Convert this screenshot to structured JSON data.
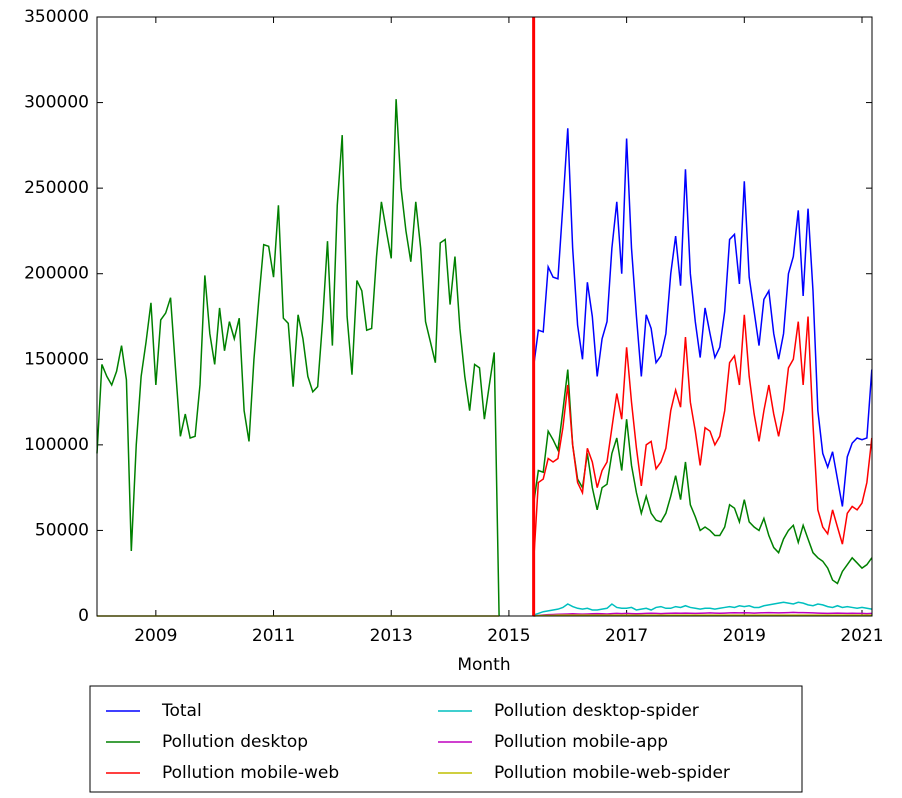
{
  "chart_data": {
    "type": "line",
    "xlabel": "Month",
    "xlim": [
      2008.0,
      2021.17
    ],
    "ylim": [
      0,
      350000
    ],
    "xticks": [
      2009,
      2011,
      2013,
      2015,
      2017,
      2019,
      2021
    ],
    "yticks": [
      0,
      50000,
      100000,
      150000,
      200000,
      250000,
      300000,
      350000
    ],
    "legend": "below",
    "vlines": [
      {
        "x": 2015.42,
        "color": "#ff0000"
      }
    ],
    "x": [
      2008.0,
      2008.083,
      2008.167,
      2008.25,
      2008.333,
      2008.417,
      2008.5,
      2008.583,
      2008.667,
      2008.75,
      2008.833,
      2008.917,
      2009.0,
      2009.083,
      2009.167,
      2009.25,
      2009.333,
      2009.417,
      2009.5,
      2009.583,
      2009.667,
      2009.75,
      2009.833,
      2009.917,
      2010.0,
      2010.083,
      2010.167,
      2010.25,
      2010.333,
      2010.417,
      2010.5,
      2010.583,
      2010.667,
      2010.75,
      2010.833,
      2010.917,
      2011.0,
      2011.083,
      2011.167,
      2011.25,
      2011.333,
      2011.417,
      2011.5,
      2011.583,
      2011.667,
      2011.75,
      2011.833,
      2011.917,
      2012.0,
      2012.083,
      2012.167,
      2012.25,
      2012.333,
      2012.417,
      2012.5,
      2012.583,
      2012.667,
      2012.75,
      2012.833,
      2012.917,
      2013.0,
      2013.083,
      2013.167,
      2013.25,
      2013.333,
      2013.417,
      2013.5,
      2013.583,
      2013.667,
      2013.75,
      2013.833,
      2013.917,
      2014.0,
      2014.083,
      2014.167,
      2014.25,
      2014.333,
      2014.417,
      2014.5,
      2014.583,
      2014.667,
      2014.75,
      2014.833,
      2014.917,
      2015.0,
      2015.083,
      2015.167,
      2015.25,
      2015.333,
      2015.417,
      2015.5,
      2015.583,
      2015.667,
      2015.75,
      2015.833,
      2015.917,
      2016.0,
      2016.083,
      2016.167,
      2016.25,
      2016.333,
      2016.417,
      2016.5,
      2016.583,
      2016.667,
      2016.75,
      2016.833,
      2016.917,
      2017.0,
      2017.083,
      2017.167,
      2017.25,
      2017.333,
      2017.417,
      2017.5,
      2017.583,
      2017.667,
      2017.75,
      2017.833,
      2017.917,
      2018.0,
      2018.083,
      2018.167,
      2018.25,
      2018.333,
      2018.417,
      2018.5,
      2018.583,
      2018.667,
      2018.75,
      2018.833,
      2018.917,
      2019.0,
      2019.083,
      2019.167,
      2019.25,
      2019.333,
      2019.417,
      2019.5,
      2019.583,
      2019.667,
      2019.75,
      2019.833,
      2019.917,
      2020.0,
      2020.083,
      2020.167,
      2020.25,
      2020.333,
      2020.417,
      2020.5,
      2020.583,
      2020.667,
      2020.75,
      2020.833,
      2020.917,
      2021.0,
      2021.083,
      2021.167
    ],
    "series": [
      {
        "name": "Total",
        "color": "#0000ff",
        "values": [
          null,
          null,
          null,
          null,
          null,
          null,
          null,
          null,
          null,
          null,
          null,
          null,
          null,
          null,
          null,
          null,
          null,
          null,
          null,
          null,
          null,
          null,
          null,
          null,
          null,
          null,
          null,
          null,
          null,
          null,
          null,
          null,
          null,
          null,
          null,
          null,
          null,
          null,
          null,
          null,
          null,
          null,
          null,
          null,
          null,
          null,
          null,
          null,
          null,
          null,
          null,
          null,
          null,
          null,
          null,
          null,
          null,
          null,
          null,
          null,
          null,
          null,
          null,
          null,
          null,
          null,
          null,
          null,
          null,
          null,
          null,
          null,
          null,
          null,
          null,
          null,
          null,
          null,
          null,
          null,
          null,
          null,
          null,
          null,
          null,
          null,
          null,
          null,
          null,
          145000,
          167000,
          166000,
          204000,
          198000,
          197000,
          240000,
          285000,
          215000,
          170000,
          150000,
          195000,
          175000,
          140000,
          162000,
          172000,
          215000,
          242000,
          200000,
          279000,
          215000,
          175000,
          140000,
          176000,
          168000,
          148000,
          152000,
          165000,
          200000,
          222000,
          193000,
          261000,
          200000,
          172000,
          151000,
          180000,
          165000,
          151000,
          157000,
          178000,
          220000,
          223000,
          194000,
          254000,
          198000,
          178000,
          158000,
          185000,
          190000,
          165000,
          150000,
          165000,
          200000,
          210000,
          237000,
          187000,
          238000,
          190000,
          120000,
          95000,
          87000,
          96000,
          80000,
          64000,
          93000,
          101000,
          104000,
          103000,
          104000,
          144000
        ]
      },
      {
        "name": "Pollution desktop",
        "color": "#008000",
        "values": [
          95000,
          147000,
          140000,
          135000,
          143000,
          158000,
          138000,
          38000,
          100000,
          140000,
          160000,
          183000,
          135000,
          173000,
          177000,
          186000,
          145000,
          105000,
          118000,
          104000,
          105000,
          135000,
          199000,
          165000,
          147000,
          180000,
          155000,
          172000,
          162000,
          174000,
          120000,
          102000,
          150000,
          185000,
          217000,
          216000,
          198000,
          240000,
          174000,
          171000,
          134000,
          176000,
          162000,
          140000,
          131000,
          134000,
          172000,
          219000,
          158000,
          240000,
          281000,
          175000,
          141000,
          196000,
          190000,
          167000,
          168000,
          210000,
          242000,
          225000,
          209000,
          302000,
          250000,
          225000,
          207000,
          242000,
          215000,
          172000,
          160000,
          148000,
          218000,
          220000,
          182000,
          210000,
          168000,
          140000,
          120000,
          147000,
          145000,
          115000,
          135000,
          154000,
          0,
          null,
          null,
          null,
          null,
          null,
          null,
          65000,
          85000,
          84000,
          108000,
          103000,
          97000,
          120000,
          144000,
          100000,
          80000,
          75000,
          95000,
          75000,
          62000,
          75000,
          77000,
          95000,
          104000,
          85000,
          115000,
          88000,
          72000,
          60000,
          70000,
          60000,
          56000,
          55000,
          60000,
          70000,
          82000,
          68000,
          90000,
          65000,
          58000,
          50000,
          52000,
          50000,
          47000,
          47000,
          52000,
          65000,
          63000,
          55000,
          68000,
          55000,
          52000,
          50000,
          57000,
          47000,
          40000,
          37000,
          45000,
          50000,
          53000,
          43000,
          53000,
          45000,
          37000,
          34000,
          32000,
          28000,
          21000,
          19000,
          26000,
          30000,
          34000,
          31000,
          28000,
          30000,
          34000
        ]
      },
      {
        "name": "Pollution mobile-web",
        "color": "#ff0000",
        "values": [
          null,
          null,
          null,
          null,
          null,
          null,
          null,
          null,
          null,
          null,
          null,
          null,
          null,
          null,
          null,
          null,
          null,
          null,
          null,
          null,
          null,
          null,
          null,
          null,
          null,
          null,
          null,
          null,
          null,
          null,
          null,
          null,
          null,
          null,
          null,
          null,
          null,
          null,
          null,
          null,
          null,
          null,
          null,
          null,
          null,
          null,
          null,
          null,
          null,
          null,
          null,
          null,
          null,
          null,
          null,
          null,
          null,
          null,
          null,
          null,
          null,
          null,
          null,
          null,
          null,
          null,
          null,
          null,
          null,
          null,
          null,
          null,
          null,
          null,
          null,
          null,
          null,
          null,
          null,
          null,
          null,
          null,
          null,
          null,
          null,
          null,
          null,
          null,
          null,
          30000,
          78000,
          80000,
          92000,
          90000,
          92000,
          110000,
          135000,
          100000,
          78000,
          72000,
          98000,
          90000,
          75000,
          85000,
          90000,
          110000,
          130000,
          115000,
          157000,
          125000,
          98000,
          76000,
          100000,
          102000,
          86000,
          90000,
          98000,
          120000,
          132000,
          122000,
          163000,
          125000,
          108000,
          88000,
          110000,
          108000,
          100000,
          105000,
          120000,
          148000,
          152000,
          135000,
          176000,
          140000,
          118000,
          102000,
          120000,
          135000,
          118000,
          105000,
          120000,
          145000,
          150000,
          172000,
          135000,
          175000,
          112000,
          62000,
          52000,
          48000,
          62000,
          52000,
          42000,
          60000,
          64000,
          62000,
          66000,
          78000,
          104000
        ]
      },
      {
        "name": "Pollution desktop-spider",
        "color": "#00bfbf",
        "values": [
          null,
          null,
          null,
          null,
          null,
          null,
          null,
          null,
          null,
          null,
          null,
          null,
          null,
          null,
          null,
          null,
          null,
          null,
          null,
          null,
          null,
          null,
          null,
          null,
          null,
          null,
          null,
          null,
          null,
          null,
          null,
          null,
          null,
          null,
          null,
          null,
          null,
          null,
          null,
          null,
          null,
          null,
          null,
          null,
          null,
          null,
          null,
          null,
          null,
          null,
          null,
          null,
          null,
          null,
          null,
          null,
          null,
          null,
          null,
          null,
          null,
          null,
          null,
          null,
          null,
          null,
          null,
          null,
          null,
          null,
          null,
          null,
          null,
          null,
          null,
          null,
          null,
          null,
          null,
          null,
          null,
          null,
          null,
          null,
          null,
          null,
          null,
          null,
          null,
          500,
          1500,
          2500,
          3000,
          3500,
          4000,
          5000,
          7000,
          5500,
          4500,
          4000,
          4500,
          3500,
          3500,
          4000,
          4500,
          7000,
          5000,
          4500,
          4500,
          5000,
          3500,
          4000,
          4500,
          3500,
          5000,
          5500,
          4500,
          4500,
          5500,
          5000,
          6000,
          5000,
          4500,
          4000,
          4500,
          4500,
          4000,
          4500,
          5000,
          5500,
          5000,
          6000,
          5500,
          6000,
          5000,
          5000,
          6000,
          6500,
          7000,
          7500,
          8000,
          7500,
          7000,
          8000,
          7500,
          6500,
          6000,
          7000,
          6500,
          5500,
          5000,
          6000,
          5000,
          5500,
          5000,
          4500,
          5000,
          4500,
          4000
        ]
      },
      {
        "name": "Pollution mobile-app",
        "color": "#bf00bf",
        "values": [
          null,
          null,
          null,
          null,
          null,
          null,
          null,
          null,
          null,
          null,
          null,
          null,
          null,
          null,
          null,
          null,
          null,
          null,
          null,
          null,
          null,
          null,
          null,
          null,
          null,
          null,
          null,
          null,
          null,
          null,
          null,
          null,
          null,
          null,
          null,
          null,
          null,
          null,
          null,
          null,
          null,
          null,
          null,
          null,
          null,
          null,
          null,
          null,
          null,
          null,
          null,
          null,
          null,
          null,
          null,
          null,
          null,
          null,
          null,
          null,
          null,
          null,
          null,
          null,
          null,
          null,
          null,
          null,
          null,
          null,
          null,
          null,
          null,
          null,
          null,
          null,
          null,
          null,
          null,
          null,
          null,
          null,
          null,
          null,
          null,
          null,
          null,
          null,
          null,
          0,
          300,
          600,
          800,
          900,
          1000,
          1100,
          1200,
          1300,
          1200,
          1100,
          1200,
          1300,
          1400,
          1300,
          1200,
          1400,
          1500,
          1400,
          1500,
          1400,
          1300,
          1400,
          1500,
          1600,
          1500,
          1400,
          1500,
          1600,
          1700,
          1600,
          1700,
          1600,
          1500,
          1600,
          1700,
          1800,
          1700,
          1600,
          1700,
          1800,
          1900,
          1800,
          1900,
          1800,
          1700,
          1800,
          1900,
          2000,
          1900,
          1800,
          1900,
          2000,
          2100,
          2000,
          2000,
          1900,
          1800,
          1700,
          1600,
          1500,
          1600,
          1700,
          1600,
          1500,
          1600,
          1500,
          1500,
          1400,
          1500
        ]
      },
      {
        "name": "Pollution mobile-web-spider",
        "color": "#bfbf00",
        "values": [
          0,
          0,
          0,
          0,
          0,
          0,
          0,
          0,
          0,
          0,
          0,
          0,
          0,
          0,
          0,
          0,
          0,
          0,
          0,
          0,
          0,
          0,
          0,
          0,
          0,
          0,
          0,
          0,
          0,
          0,
          0,
          0,
          0,
          0,
          0,
          0,
          0,
          0,
          0,
          0,
          0,
          0,
          0,
          0,
          0,
          0,
          0,
          0,
          0,
          0,
          0,
          0,
          0,
          0,
          0,
          0,
          0,
          0,
          0,
          0,
          0,
          0,
          0,
          0,
          0,
          0,
          0,
          0,
          0,
          0,
          0,
          0,
          0,
          0,
          0,
          0,
          0,
          0,
          0,
          0,
          0,
          0,
          0,
          null,
          null,
          null,
          null,
          null,
          null,
          0,
          200,
          300,
          400,
          400,
          500,
          500,
          500,
          500,
          500,
          500,
          500,
          500,
          500,
          500,
          500,
          500,
          500,
          500,
          500,
          500,
          500,
          500,
          500,
          500,
          500,
          500,
          500,
          500,
          500,
          500,
          500,
          500,
          500,
          500,
          500,
          500,
          500,
          500,
          500,
          500,
          500,
          500,
          500,
          500,
          500,
          500,
          500,
          500,
          500,
          500,
          500,
          500,
          500,
          500,
          500,
          500,
          500,
          500,
          500,
          500,
          500,
          500,
          500,
          500,
          500,
          500,
          500,
          500,
          500
        ]
      }
    ]
  }
}
